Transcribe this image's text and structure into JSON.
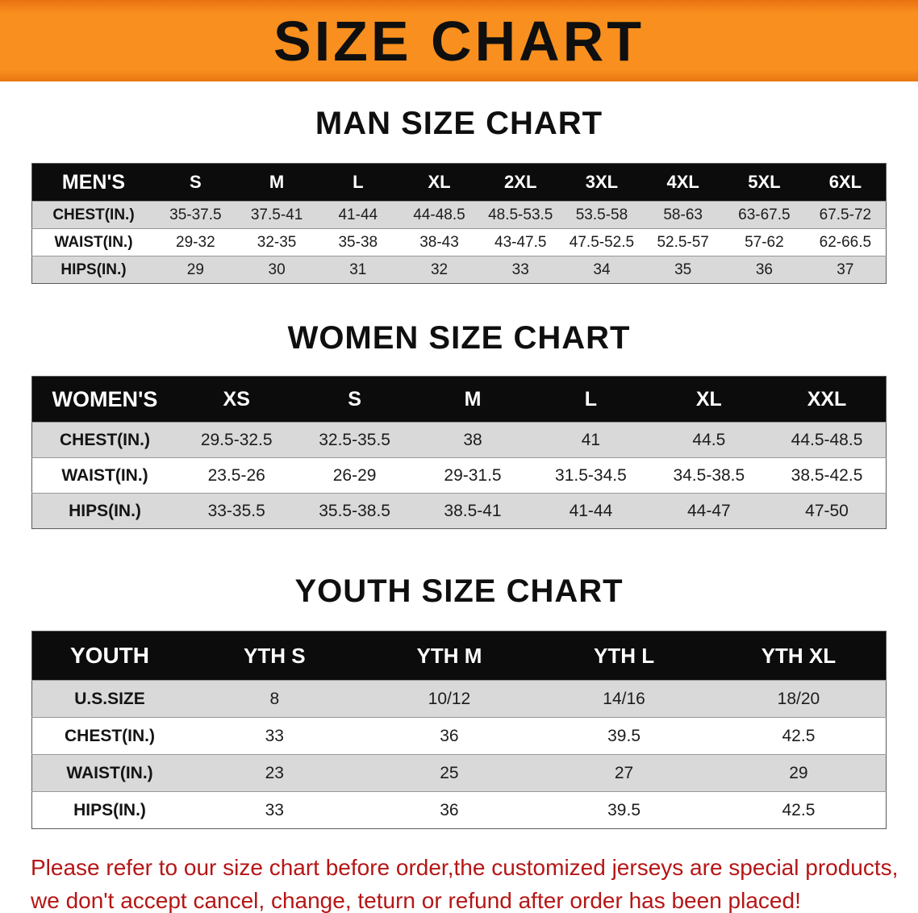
{
  "banner": {
    "title": "SIZE CHART"
  },
  "men": {
    "heading": "MAN SIZE CHART",
    "label": "MEN'S",
    "sizes": [
      "S",
      "M",
      "L",
      "XL",
      "2XL",
      "3XL",
      "4XL",
      "5XL",
      "6XL"
    ],
    "rows": [
      {
        "label": "CHEST(IN.)",
        "values": [
          "35-37.5",
          "37.5-41",
          "41-44",
          "44-48.5",
          "48.5-53.5",
          "53.5-58",
          "58-63",
          "63-67.5",
          "67.5-72"
        ]
      },
      {
        "label": "WAIST(IN.)",
        "values": [
          "29-32",
          "32-35",
          "35-38",
          "38-43",
          "43-47.5",
          "47.5-52.5",
          "52.5-57",
          "57-62",
          "62-66.5"
        ]
      },
      {
        "label": "HIPS(IN.)",
        "values": [
          "29",
          "30",
          "31",
          "32",
          "33",
          "34",
          "35",
          "36",
          "37"
        ]
      }
    ]
  },
  "women": {
    "heading": "WOMEN SIZE CHART",
    "label": "WOMEN'S",
    "sizes": [
      "XS",
      "S",
      "M",
      "L",
      "XL",
      "XXL"
    ],
    "rows": [
      {
        "label": "CHEST(IN.)",
        "values": [
          "29.5-32.5",
          "32.5-35.5",
          "38",
          "41",
          "44.5",
          "44.5-48.5"
        ]
      },
      {
        "label": "WAIST(IN.)",
        "values": [
          "23.5-26",
          "26-29",
          "29-31.5",
          "31.5-34.5",
          "34.5-38.5",
          "38.5-42.5"
        ]
      },
      {
        "label": "HIPS(IN.)",
        "values": [
          "33-35.5",
          "35.5-38.5",
          "38.5-41",
          "41-44",
          "44-47",
          "47-50"
        ]
      }
    ]
  },
  "youth": {
    "heading": "YOUTH SIZE CHART",
    "label": "YOUTH",
    "sizes": [
      "YTH S",
      "YTH M",
      "YTH L",
      "YTH XL"
    ],
    "rows": [
      {
        "label": "U.S.SIZE",
        "values": [
          "8",
          "10/12",
          "14/16",
          "18/20"
        ]
      },
      {
        "label": "CHEST(IN.)",
        "values": [
          "33",
          "36",
          "39.5",
          "42.5"
        ]
      },
      {
        "label": "WAIST(IN.)",
        "values": [
          "23",
          "25",
          "27",
          "29"
        ]
      },
      {
        "label": "HIPS(IN.)",
        "values": [
          "33",
          "36",
          "39.5",
          "42.5"
        ]
      }
    ]
  },
  "disclaimer": {
    "line1": "Please refer to our size chart before order,the customized jerseys are special products,",
    "line2": "we don't accept cancel, change, teturn or refund after order has been placed!"
  },
  "colors": {
    "banner_orange": "#f88f1e",
    "header_black": "#0c0c0c",
    "row_gray": "#d9d9d9",
    "disclaimer_red": "#b51616"
  }
}
